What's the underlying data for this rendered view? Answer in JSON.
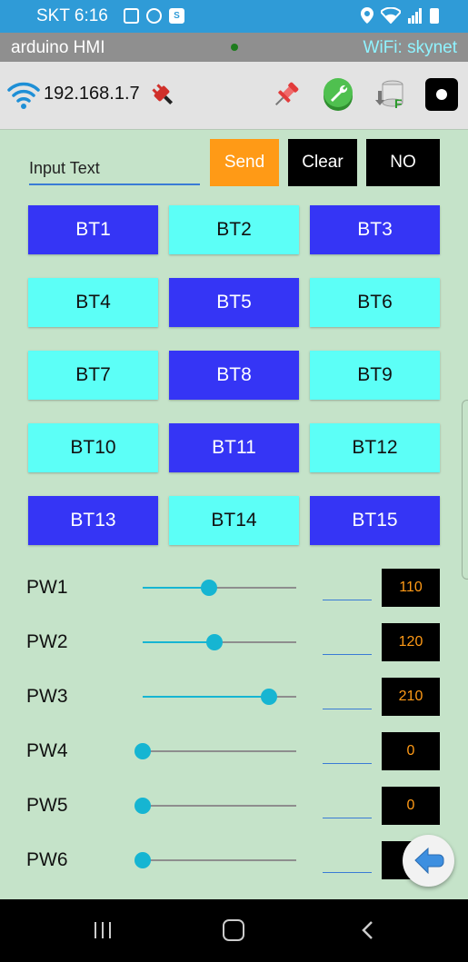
{
  "status_bar": {
    "time": "SKT 6:16",
    "icons": [
      "gallery-icon",
      "account-icon",
      "app-badge-icon",
      "location-icon",
      "wifi-icon",
      "signal-icon",
      "battery-icon"
    ]
  },
  "title_bar": {
    "app_title": "arduino HMI",
    "wifi_label": "WiFi: skynet",
    "indicator_color": "#1e7c1e"
  },
  "toolbar": {
    "ip_address": "192.168.1.7",
    "icons": [
      "wifi-icon",
      "plug-icon",
      "pin-icon",
      "wrench-icon",
      "database-icon",
      "record-icon"
    ]
  },
  "input": {
    "value": "",
    "placeholder": "Input Text"
  },
  "actions": {
    "send_label": "Send",
    "clear_label": "Clear",
    "no_label": "NO"
  },
  "buttons": [
    {
      "label": "BT1",
      "color": "#3535f5"
    },
    {
      "label": "BT2",
      "color": "#5cfff7"
    },
    {
      "label": "BT3",
      "color": "#3535f5"
    },
    {
      "label": "BT4",
      "color": "#5cfff7"
    },
    {
      "label": "BT5",
      "color": "#3535f5"
    },
    {
      "label": "BT6",
      "color": "#5cfff7"
    },
    {
      "label": "BT7",
      "color": "#5cfff7"
    },
    {
      "label": "BT8",
      "color": "#3535f5"
    },
    {
      "label": "BT9",
      "color": "#5cfff7"
    },
    {
      "label": "BT10",
      "color": "#5cfff7"
    },
    {
      "label": "BT11",
      "color": "#3535f5"
    },
    {
      "label": "BT12",
      "color": "#5cfff7"
    },
    {
      "label": "BT13",
      "color": "#3535f5"
    },
    {
      "label": "BT14",
      "color": "#5cfff7"
    },
    {
      "label": "BT15",
      "color": "#3535f5"
    }
  ],
  "sliders": [
    {
      "label": "PW1",
      "value": "110",
      "level": 0.43
    },
    {
      "label": "PW2",
      "value": "120",
      "level": 0.47
    },
    {
      "label": "PW3",
      "value": "210",
      "level": 0.82
    },
    {
      "label": "PW4",
      "value": "0",
      "level": 0
    },
    {
      "label": "PW5",
      "value": "0",
      "level": 0
    },
    {
      "label": "PW6",
      "value": "",
      "level": 0
    }
  ],
  "colors": {
    "background": "#c5e3c9",
    "accent_orange": "#ff9a16",
    "slider_accent": "#16b5d2"
  }
}
